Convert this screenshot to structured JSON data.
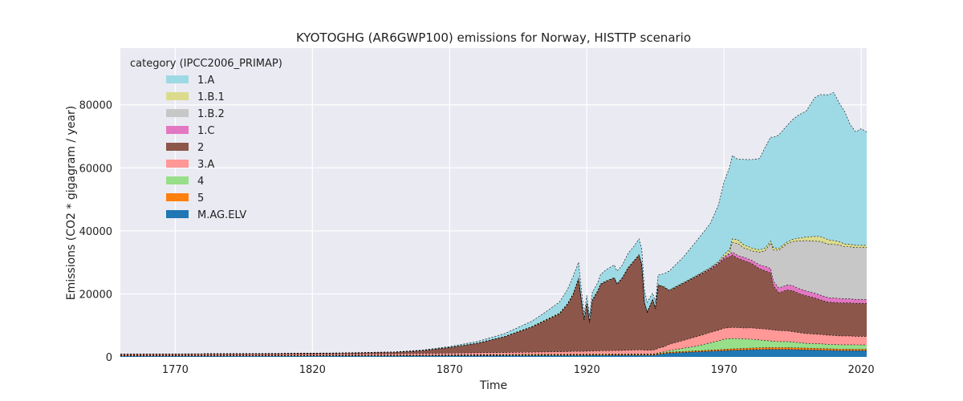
{
  "chart_data": {
    "type": "area",
    "title": "KYOTOGHG (AR6GWP100) emissions for Norway, HISTTP scenario",
    "xlabel": "Time",
    "ylabel": "Emissions (CO2 * gigagram / year)",
    "xlim": [
      1750,
      2022
    ],
    "ylim": [
      0,
      98000
    ],
    "xticks": [
      1770,
      1820,
      1870,
      1920,
      1970,
      2020
    ],
    "yticks": [
      0,
      20000,
      40000,
      60000,
      80000
    ],
    "grid": true,
    "legend": {
      "title": "category (IPCC2006_PRIMAP)",
      "placement": "top-left"
    },
    "stack_order_bottom_to_top": [
      "M.AG.ELV",
      "5",
      "4",
      "3.A",
      "2",
      "1.C",
      "1.B.2",
      "1.B.1",
      "1.A"
    ],
    "x": [
      1750,
      1800,
      1830,
      1850,
      1860,
      1870,
      1880,
      1890,
      1900,
      1905,
      1910,
      1913,
      1915,
      1917,
      1918,
      1919,
      1920,
      1921,
      1922,
      1924,
      1925,
      1927,
      1930,
      1931,
      1933,
      1935,
      1937,
      1939,
      1940,
      1941,
      1942,
      1944,
      1945,
      1946,
      1948,
      1950,
      1955,
      1960,
      1965,
      1968,
      1970,
      1972,
      1973,
      1975,
      1977,
      1980,
      1983,
      1985,
      1987,
      1988,
      1990,
      1993,
      1995,
      1997,
      2000,
      2003,
      2005,
      2008,
      2010,
      2012,
      2014,
      2016,
      2018,
      2020,
      2022
    ],
    "series": [
      {
        "name": "1.A",
        "color": "#9edae5",
        "values": [
          20,
          30,
          40,
          80,
          150,
          250,
          500,
          900,
          1700,
          2500,
          3500,
          4500,
          5500,
          5000,
          3500,
          1500,
          2500,
          2000,
          2500,
          2500,
          3000,
          3500,
          4000,
          4000,
          4000,
          4500,
          4500,
          5000,
          5000,
          4000,
          3000,
          2000,
          2000,
          3000,
          4000,
          6000,
          8000,
          11000,
          14000,
          18000,
          23000,
          26000,
          26500,
          25500,
          27000,
          28000,
          29000,
          32000,
          33000,
          35000,
          36000,
          37000,
          38000,
          39000,
          40000,
          44000,
          45000,
          46000,
          47000,
          44000,
          42000,
          38000,
          36000,
          37000,
          36000
        ]
      },
      {
        "name": "1.B.1",
        "color": "#dbdb8d",
        "values": [
          0,
          0,
          10,
          20,
          30,
          50,
          80,
          100,
          150,
          200,
          250,
          300,
          300,
          300,
          200,
          150,
          200,
          150,
          150,
          200,
          200,
          200,
          200,
          200,
          200,
          200,
          200,
          200,
          200,
          150,
          150,
          150,
          150,
          200,
          200,
          200,
          200,
          200,
          300,
          400,
          800,
          1000,
          1200,
          1200,
          1000,
          900,
          800,
          800,
          700,
          700,
          600,
          600,
          700,
          900,
          1200,
          1500,
          1600,
          1400,
          1200,
          1000,
          900,
          800,
          700,
          700,
          700
        ]
      },
      {
        "name": "1.B.2",
        "color": "#c7c7c7",
        "values": [
          0,
          0,
          0,
          0,
          0,
          0,
          0,
          0,
          0,
          0,
          0,
          0,
          0,
          0,
          0,
          0,
          0,
          0,
          0,
          0,
          0,
          0,
          0,
          0,
          0,
          0,
          0,
          0,
          0,
          0,
          0,
          0,
          0,
          0,
          0,
          0,
          0,
          0,
          0,
          0,
          0,
          500,
          3000,
          3800,
          3000,
          3000,
          4000,
          5000,
          8000,
          10000,
          12000,
          13000,
          14000,
          15000,
          16000,
          16500,
          17000,
          17000,
          17000,
          17000,
          16500,
          16500,
          16500,
          16500,
          16500
        ]
      },
      {
        "name": "1.C",
        "color": "#e377c2",
        "values": [
          0,
          0,
          0,
          0,
          0,
          0,
          0,
          0,
          0,
          0,
          0,
          0,
          0,
          0,
          0,
          0,
          0,
          0,
          0,
          0,
          0,
          0,
          0,
          0,
          0,
          0,
          0,
          0,
          0,
          0,
          0,
          0,
          0,
          0,
          0,
          50,
          100,
          200,
          300,
          400,
          600,
          800,
          900,
          900,
          1000,
          1000,
          1200,
          1400,
          1400,
          1400,
          1500,
          1600,
          1600,
          1500,
          1500,
          1500,
          1500,
          1400,
          1400,
          1400,
          1300,
          1300,
          1200,
          1200,
          1200
        ]
      },
      {
        "name": "2",
        "color": "#8c564b",
        "values": [
          100,
          200,
          300,
          500,
          900,
          1800,
          3000,
          5000,
          8000,
          10000,
          12000,
          15000,
          18000,
          23000,
          16000,
          10000,
          15000,
          9000,
          16000,
          19000,
          21000,
          22000,
          23000,
          21000,
          23000,
          26000,
          28000,
          30000,
          27000,
          15000,
          12000,
          16000,
          13000,
          20000,
          19000,
          17000,
          18000,
          19000,
          20000,
          21000,
          22000,
          22500,
          23000,
          22000,
          21500,
          20500,
          19000,
          18500,
          18000,
          14000,
          12000,
          13000,
          13000,
          12500,
          12000,
          11500,
          11000,
          10500,
          10500,
          10500,
          10500,
          10500,
          10500,
          10500,
          10500
        ]
      },
      {
        "name": "3.A",
        "color": "#ff9896",
        "values": [
          300,
          350,
          400,
          450,
          500,
          550,
          600,
          650,
          700,
          750,
          800,
          850,
          900,
          900,
          900,
          900,
          950,
          950,
          1000,
          1000,
          1050,
          1050,
          1100,
          1100,
          1150,
          1200,
          1250,
          1300,
          1300,
          1200,
          1200,
          1200,
          1300,
          1500,
          1600,
          2000,
          2500,
          3000,
          3300,
          3400,
          3500,
          3500,
          3500,
          3500,
          3500,
          3600,
          3600,
          3600,
          3600,
          3600,
          3500,
          3400,
          3300,
          3200,
          3100,
          3000,
          3000,
          2900,
          2900,
          2800,
          2800,
          2800,
          2700,
          2700,
          2700
        ]
      },
      {
        "name": "4",
        "color": "#98df8a",
        "values": [
          50,
          50,
          50,
          60,
          60,
          80,
          100,
          120,
          150,
          150,
          150,
          150,
          150,
          150,
          150,
          150,
          150,
          150,
          150,
          150,
          150,
          150,
          150,
          150,
          150,
          150,
          150,
          150,
          150,
          150,
          150,
          150,
          150,
          200,
          300,
          500,
          1000,
          1500,
          2300,
          2800,
          3200,
          3300,
          3300,
          3200,
          3000,
          2800,
          2500,
          2300,
          2100,
          2000,
          1900,
          1900,
          1800,
          1700,
          1500,
          1500,
          1500,
          1400,
          1400,
          1400,
          1400,
          1400,
          1400,
          1400,
          1400
        ]
      },
      {
        "name": "5",
        "color": "#ff7f0e",
        "values": [
          100,
          110,
          120,
          130,
          140,
          150,
          160,
          170,
          180,
          190,
          200,
          200,
          210,
          210,
          210,
          210,
          220,
          220,
          220,
          230,
          230,
          230,
          240,
          240,
          240,
          250,
          250,
          250,
          250,
          250,
          250,
          250,
          250,
          260,
          270,
          280,
          300,
          320,
          350,
          380,
          400,
          420,
          440,
          460,
          480,
          500,
          520,
          540,
          550,
          560,
          560,
          560,
          560,
          550,
          540,
          520,
          500,
          480,
          460,
          450,
          440,
          430,
          420,
          410,
          400
        ]
      },
      {
        "name": "M.AG.ELV",
        "color": "#1f77b4",
        "values": [
          300,
          320,
          340,
          360,
          380,
          400,
          420,
          440,
          460,
          470,
          480,
          480,
          490,
          490,
          490,
          490,
          500,
          500,
          500,
          500,
          510,
          510,
          520,
          520,
          520,
          530,
          530,
          540,
          540,
          540,
          540,
          540,
          600,
          800,
          1000,
          1200,
          1400,
          1600,
          1800,
          1900,
          2000,
          2050,
          2100,
          2150,
          2200,
          2300,
          2350,
          2400,
          2400,
          2400,
          2400,
          2400,
          2350,
          2300,
          2250,
          2200,
          2150,
          2100,
          2050,
          2000,
          2000,
          2000,
          2000,
          2000,
          2000
        ]
      }
    ]
  }
}
